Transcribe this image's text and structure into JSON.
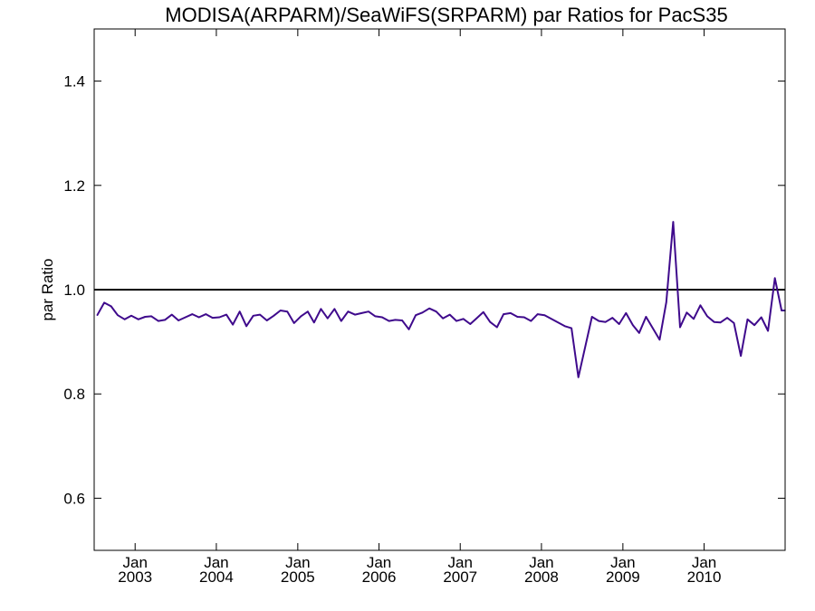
{
  "chart_data": {
    "type": "line",
    "title": "MODISA(ARPARM)/SeaWiFS(SRPARM)  par Ratios for PacS35",
    "xlabel": "",
    "ylabel": "par Ratio",
    "xlim": [
      "2002-07-01",
      "2010-12-31"
    ],
    "ylim": [
      0.5,
      1.5
    ],
    "y_ticks": [
      0.6,
      0.8,
      1.0,
      1.2,
      1.4
    ],
    "y_tick_labels": [
      "0.6",
      "0.8",
      "1.0",
      "1.2",
      "1.4"
    ],
    "x_ticks": [
      {
        "date": "2003-01-01",
        "month": "Jan",
        "year": "2003"
      },
      {
        "date": "2004-01-01",
        "month": "Jan",
        "year": "2004"
      },
      {
        "date": "2005-01-01",
        "month": "Jan",
        "year": "2005"
      },
      {
        "date": "2006-01-01",
        "month": "Jan",
        "year": "2006"
      },
      {
        "date": "2007-01-01",
        "month": "Jan",
        "year": "2007"
      },
      {
        "date": "2008-01-01",
        "month": "Jan",
        "year": "2008"
      },
      {
        "date": "2009-01-01",
        "month": "Jan",
        "year": "2009"
      },
      {
        "date": "2010-01-01",
        "month": "Jan",
        "year": "2010"
      }
    ],
    "reference_line": {
      "y": 1.0,
      "color": "#000000"
    },
    "grid": false,
    "series": [
      {
        "color": "#3f0a8c",
        "x": [
          "2002-07-15",
          "2002-08-15",
          "2002-09-15",
          "2002-10-15",
          "2002-11-15",
          "2002-12-15",
          "2003-01-15",
          "2003-02-15",
          "2003-03-15",
          "2003-04-15",
          "2003-05-15",
          "2003-06-15",
          "2003-07-15",
          "2003-08-15",
          "2003-09-15",
          "2003-10-15",
          "2003-11-15",
          "2003-12-15",
          "2004-01-15",
          "2004-02-15",
          "2004-03-15",
          "2004-04-15",
          "2004-05-15",
          "2004-06-15",
          "2004-07-15",
          "2004-08-15",
          "2004-09-15",
          "2004-10-15",
          "2004-11-15",
          "2004-12-15",
          "2005-01-15",
          "2005-02-15",
          "2005-03-15",
          "2005-04-15",
          "2005-05-15",
          "2005-06-15",
          "2005-07-15",
          "2005-08-15",
          "2005-09-15",
          "2005-10-15",
          "2005-11-15",
          "2005-12-15",
          "2006-01-15",
          "2006-02-15",
          "2006-03-15",
          "2006-04-15",
          "2006-05-15",
          "2006-06-15",
          "2006-07-15",
          "2006-08-15",
          "2006-09-15",
          "2006-10-15",
          "2006-11-15",
          "2006-12-15",
          "2007-01-15",
          "2007-02-15",
          "2007-03-15",
          "2007-04-15",
          "2007-05-15",
          "2007-06-15",
          "2007-07-15",
          "2007-08-15",
          "2007-09-15",
          "2007-10-15",
          "2007-11-15",
          "2007-12-15",
          "2008-01-15",
          "2008-04-15",
          "2008-05-15",
          "2008-06-15",
          "2008-08-15",
          "2008-09-15",
          "2008-10-15",
          "2008-11-15",
          "2008-12-15",
          "2009-01-15",
          "2009-02-15",
          "2009-03-15",
          "2009-04-15",
          "2009-06-15",
          "2009-07-15",
          "2009-08-15",
          "2009-09-15",
          "2009-10-15",
          "2009-11-15",
          "2009-12-15",
          "2010-01-15",
          "2010-02-15",
          "2010-03-15",
          "2010-04-15",
          "2010-05-15",
          "2010-06-15",
          "2010-07-15",
          "2010-08-15",
          "2010-09-15",
          "2010-10-15",
          "2010-11-15",
          "2010-12-15",
          "2010-12-31"
        ],
        "values": [
          0.951,
          0.975,
          0.968,
          0.951,
          0.943,
          0.95,
          0.943,
          0.948,
          0.949,
          0.94,
          0.942,
          0.952,
          0.941,
          0.947,
          0.953,
          0.947,
          0.953,
          0.946,
          0.947,
          0.952,
          0.933,
          0.958,
          0.93,
          0.95,
          0.952,
          0.941,
          0.95,
          0.96,
          0.958,
          0.936,
          0.949,
          0.958,
          0.937,
          0.963,
          0.945,
          0.963,
          0.94,
          0.958,
          0.952,
          0.955,
          0.958,
          0.949,
          0.947,
          0.94,
          0.942,
          0.941,
          0.924,
          0.951,
          0.956,
          0.964,
          0.958,
          0.945,
          0.952,
          0.94,
          0.944,
          0.934,
          0.945,
          0.957,
          0.938,
          0.928,
          0.953,
          0.955,
          0.948,
          0.947,
          0.94,
          0.953,
          0.951,
          0.93,
          0.926,
          0.832,
          0.948,
          0.94,
          0.938,
          0.946,
          0.934,
          0.955,
          0.932,
          0.917,
          0.948,
          0.904,
          0.976,
          1.13,
          0.928,
          0.956,
          0.944,
          0.97,
          0.949,
          0.938,
          0.937,
          0.946,
          0.936,
          0.873,
          0.943,
          0.932,
          0.947,
          0.921,
          1.022,
          0.96,
          0.96
        ]
      }
    ]
  }
}
